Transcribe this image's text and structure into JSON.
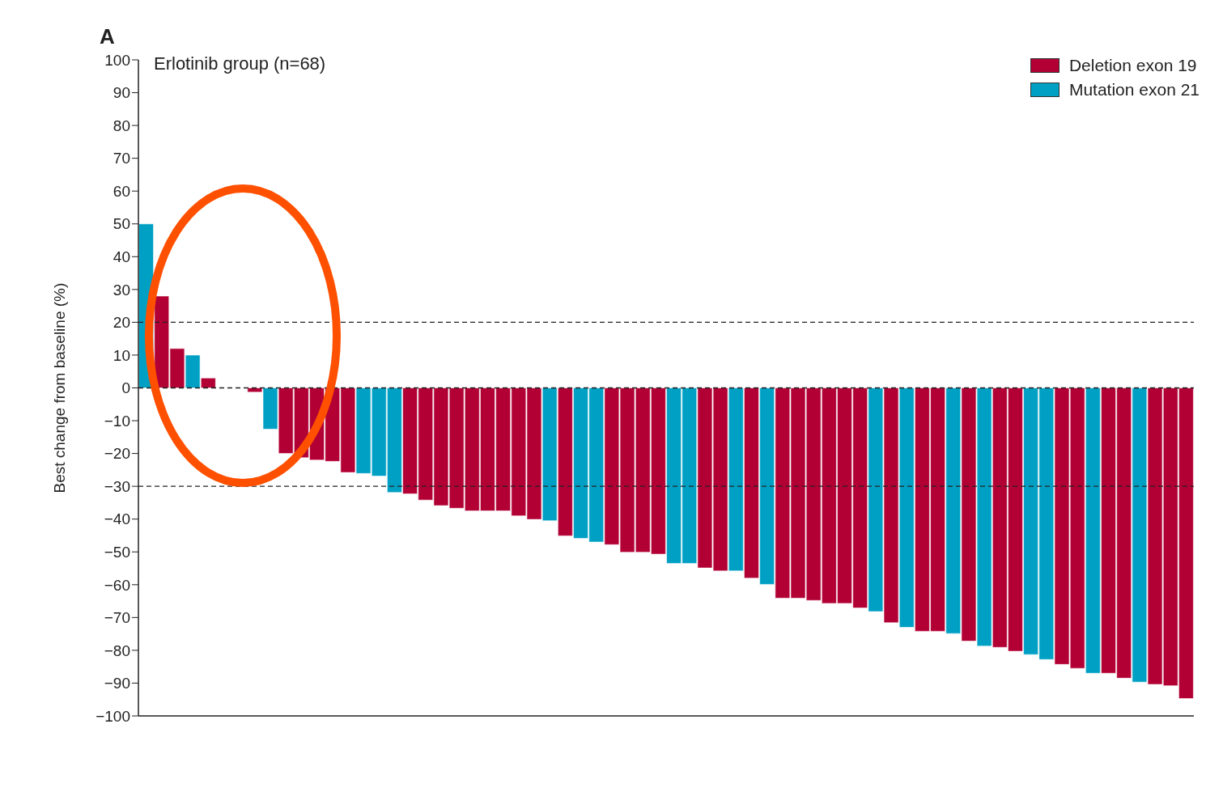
{
  "chart_data": {
    "type": "bar",
    "title": "Erlotinib group (n=68)",
    "ylabel": "Best change from baseline (%)",
    "annotations": [
      "A"
    ],
    "categories": [
      null,
      null,
      null,
      null,
      null,
      null,
      null,
      null,
      null,
      null,
      null,
      null,
      null,
      null,
      null,
      null,
      null,
      null,
      null,
      null,
      null,
      null,
      null,
      null,
      null,
      null,
      null,
      null,
      null,
      null,
      null,
      null,
      null,
      null,
      null,
      null,
      null,
      null,
      null,
      null,
      null,
      null,
      null,
      null,
      null,
      null,
      null,
      null,
      null,
      null,
      null,
      null,
      null,
      null,
      null,
      null,
      null,
      null,
      null,
      null,
      null,
      null,
      null,
      null,
      null,
      null,
      null,
      null
    ],
    "stacked": true,
    "series": [
      {
        "name": "Deletion exon 19",
        "color": "#b20035",
        "values": [
          null,
          28,
          12,
          null,
          3,
          null,
          null,
          -1.3,
          null,
          -20,
          -21.3,
          -22,
          -22.4,
          -25.8,
          null,
          null,
          null,
          -32.3,
          -34.2,
          -35.9,
          -36.7,
          -37.5,
          -37.5,
          -37.5,
          -39,
          -40.1,
          null,
          -45.1,
          null,
          null,
          -47.8,
          -50.1,
          -50.1,
          -50.7,
          null,
          null,
          -54.9,
          -55.8,
          null,
          -58,
          null,
          -64.1,
          -64.1,
          -64.8,
          -65.7,
          -65.7,
          -67.1,
          null,
          -71.6,
          null,
          -74.2,
          -74.2,
          null,
          -77.2,
          null,
          -79.1,
          -80.3,
          null,
          null,
          -84.3,
          -85.5,
          null,
          -87,
          -88.5,
          null,
          -90.4,
          -90.8,
          -94.7
        ]
      },
      {
        "name": "Mutation exon 21",
        "color": "#00a0c4",
        "values": [
          50,
          null,
          null,
          10,
          null,
          null,
          null,
          null,
          -12.6,
          null,
          null,
          null,
          null,
          null,
          -26.1,
          -26.9,
          -31.9,
          null,
          null,
          null,
          null,
          null,
          null,
          null,
          null,
          null,
          -40.5,
          null,
          -45.9,
          -47,
          null,
          null,
          null,
          null,
          -53.5,
          -53.5,
          null,
          null,
          -55.8,
          null,
          -59.9,
          null,
          null,
          null,
          null,
          null,
          null,
          -68.2,
          null,
          -73,
          null,
          null,
          -74.9,
          null,
          -78.7,
          null,
          null,
          -81.3,
          -82.8,
          null,
          null,
          -87,
          null,
          null,
          -89.7,
          null,
          null,
          null
        ]
      }
    ],
    "ylim": [
      -100,
      100
    ],
    "yticks": [
      -100,
      -90,
      -80,
      -70,
      -60,
      -50,
      -40,
      -30,
      -20,
      -10,
      0,
      10,
      20,
      30,
      40,
      50,
      60,
      70,
      80,
      90,
      100
    ],
    "ref_lines": [
      {
        "axis": "y",
        "value": 20,
        "line_style": "dashed",
        "color": "#222222"
      },
      {
        "axis": "y",
        "value": 0,
        "line_style": "dashed",
        "color": "#222222"
      },
      {
        "axis": "y",
        "value": -30,
        "line_style": "dashed",
        "color": "#222222"
      }
    ],
    "legend": "top right"
  }
}
